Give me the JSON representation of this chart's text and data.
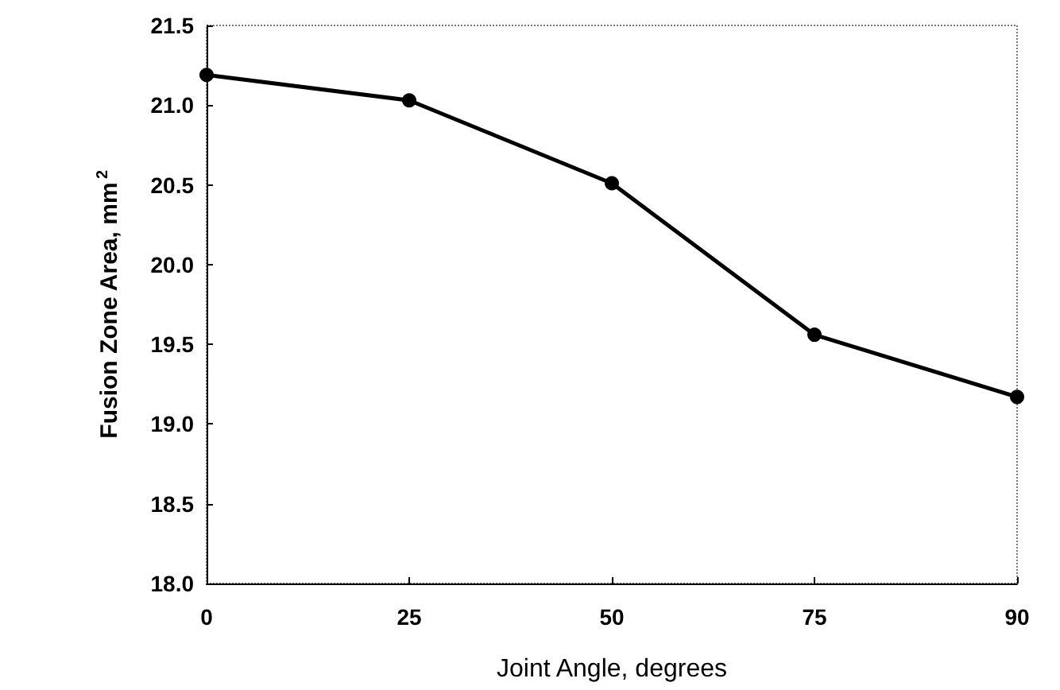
{
  "chart_data": {
    "type": "line",
    "xlabel": "Joint Angle, degrees",
    "ylabel": "Fusion Zone Area, mm$^{2}$",
    "categories": [
      "0",
      "25",
      "50",
      "75",
      "90"
    ],
    "series": [
      {
        "color": "#000000",
        "values": [
          21.19,
          21.03,
          20.51,
          19.56,
          19.17
        ]
      }
    ],
    "ylim": [
      18.0,
      21.5
    ],
    "yticks": [
      {
        "value": 18,
        "label": "18.0"
      },
      {
        "value": 18.5,
        "label": "18.5"
      },
      {
        "value": 19,
        "label": "19.0"
      },
      {
        "value": 19.5,
        "label": "19.5"
      },
      {
        "value": 20,
        "label": "20.0"
      },
      {
        "value": 20.5,
        "label": "20.5"
      },
      {
        "value": 21,
        "label": "21.0"
      },
      {
        "value": 21.5,
        "label": "21.5"
      }
    ],
    "grid": false,
    "marker": "circle",
    "line_style": "solid"
  }
}
